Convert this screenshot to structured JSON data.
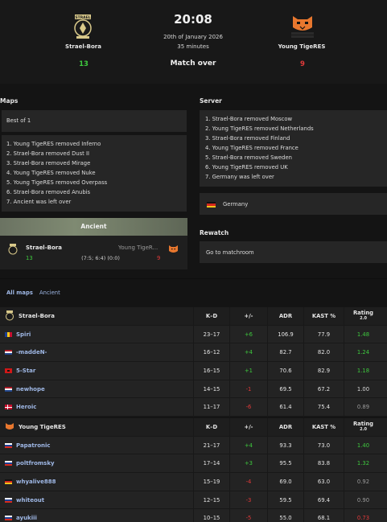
{
  "match": {
    "time": "20:08",
    "date": "20th of January 2026",
    "duration": "35 minutes",
    "status": "Match over",
    "team1": {
      "name": "Strael-Bora",
      "score": "13"
    },
    "team2": {
      "name": "Young TigeRES",
      "score": "9"
    }
  },
  "maps": {
    "title": "Maps",
    "format": "Best of 1",
    "veto": [
      "1. Young TigeRES removed Inferno",
      "2. Strael-Bora removed Dust II",
      "3. Strael-Bora removed Mirage",
      "4. Young TigeRES removed Nuke",
      "5. Young TigeRES removed Overpass",
      "6. Strael-Bora removed Anubis",
      "7. Ancient was left over"
    ],
    "played": {
      "map_name": "Ancient",
      "team1": "Strael-Bora",
      "team1_score": "13",
      "team2": "Young TigeR...",
      "team2_score": "9",
      "halves": "(7:5; 6:4) (0:0)"
    }
  },
  "server": {
    "title": "Server",
    "veto": [
      "1. Strael-Bora removed Moscow",
      "2. Young TigeRES removed Netherlands",
      "3. Strael-Bora removed Finland",
      "4. Young TigeRES removed France",
      "5. Strael-Bora removed Sweden",
      "6. Young TigeRES removed UK",
      "7. Germany was left over"
    ],
    "location": "Germany"
  },
  "rewatch": {
    "title": "Rewatch",
    "link": "Go to matchroom"
  },
  "tabs": {
    "all_maps": "All maps",
    "ancient": "Ancient"
  },
  "columns": {
    "kd": "K–D",
    "pm": "+/-",
    "adr": "ADR",
    "kast": "KAST %",
    "rating": "Rating",
    "rating_ver": "2.0"
  },
  "team1_stats": {
    "team": "Strael-Bora",
    "players": [
      {
        "name": "Spiri",
        "flag": "ro",
        "kd": "23–17",
        "pm": "+6",
        "pm_color": "green",
        "adr": "106.9",
        "kast": "77.9",
        "rating": "1.48",
        "rating_color": "green"
      },
      {
        "name": "-maddeN-",
        "flag": "nl",
        "kd": "16–12",
        "pm": "+4",
        "pm_color": "green",
        "adr": "82.7",
        "kast": "82.0",
        "rating": "1.24",
        "rating_color": "green"
      },
      {
        "name": "5-Star",
        "flag": "al",
        "kd": "16–15",
        "pm": "+1",
        "pm_color": "green",
        "adr": "70.6",
        "kast": "82.9",
        "rating": "1.18",
        "rating_color": "green"
      },
      {
        "name": "newhope",
        "flag": "nl",
        "kd": "14–15",
        "pm": "-1",
        "pm_color": "red",
        "adr": "69.5",
        "kast": "67.2",
        "rating": "1.00",
        "rating_color": "white"
      },
      {
        "name": "Heroic",
        "flag": "dk",
        "kd": "11–17",
        "pm": "-6",
        "pm_color": "red",
        "adr": "61.4",
        "kast": "75.4",
        "rating": "0.89",
        "rating_color": "muted"
      }
    ]
  },
  "team2_stats": {
    "team": "Young TigeRES",
    "players": [
      {
        "name": "Papatronic",
        "flag": "ru",
        "kd": "21–17",
        "pm": "+4",
        "pm_color": "green",
        "adr": "93.3",
        "kast": "73.0",
        "rating": "1.40",
        "rating_color": "green"
      },
      {
        "name": "poltfromsky",
        "flag": "ru",
        "kd": "17–14",
        "pm": "+3",
        "pm_color": "green",
        "adr": "95.5",
        "kast": "83.8",
        "rating": "1.32",
        "rating_color": "green"
      },
      {
        "name": "whyalive888",
        "flag": "de",
        "kd": "15–19",
        "pm": "-4",
        "pm_color": "red",
        "adr": "69.0",
        "kast": "63.0",
        "rating": "0.92",
        "rating_color": "muted"
      },
      {
        "name": "whiteout",
        "flag": "ru",
        "kd": "12–15",
        "pm": "-3",
        "pm_color": "red",
        "adr": "59.5",
        "kast": "69.4",
        "rating": "0.90",
        "rating_color": "muted"
      },
      {
        "name": "ayukiii",
        "flag": "ru",
        "kd": "10–15",
        "pm": "-5",
        "pm_color": "red",
        "adr": "55.0",
        "kast": "68.1",
        "rating": "0.73",
        "rating_color": "red"
      }
    ]
  },
  "colors": {
    "green": "#3ec93e",
    "red": "#e23a3a",
    "link": "#9fb8e6",
    "panel": "#262626",
    "bg": "#141414"
  }
}
